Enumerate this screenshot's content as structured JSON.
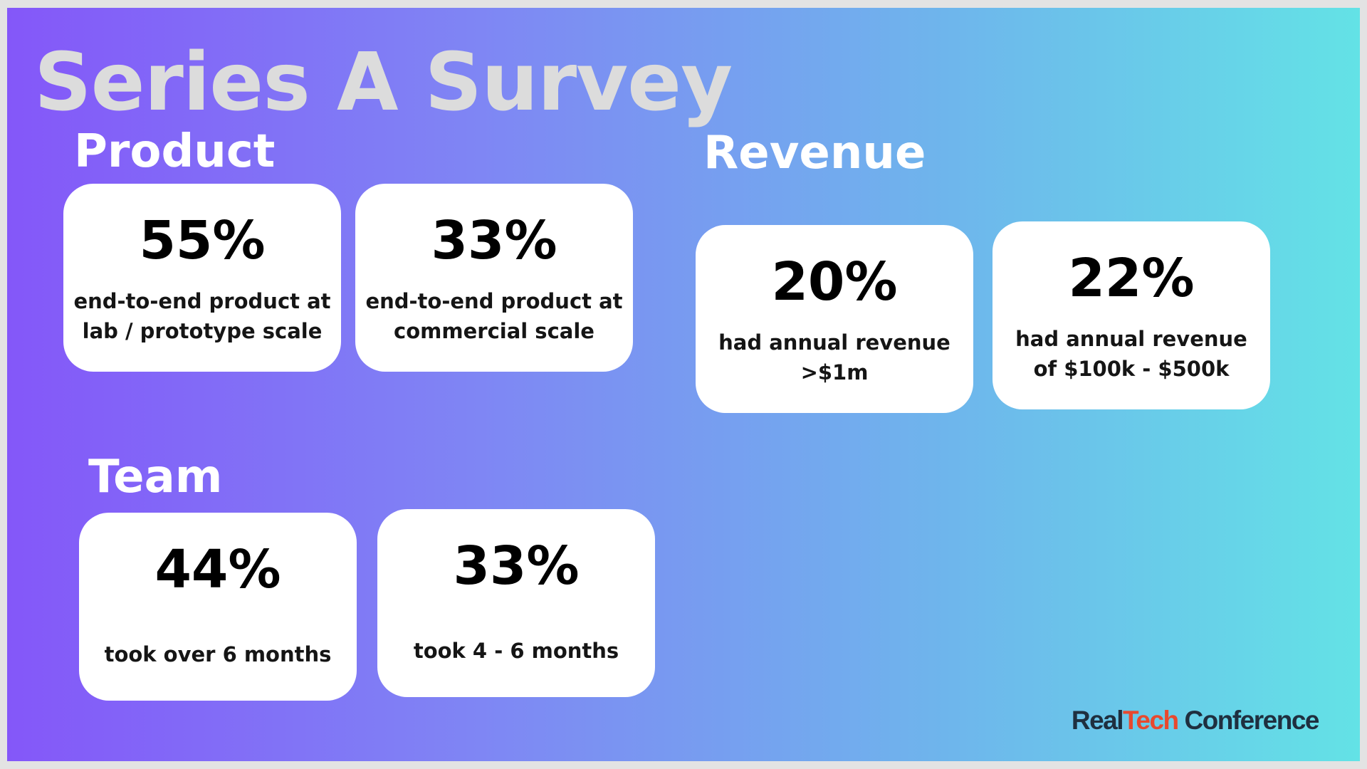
{
  "title": "Series A Survey",
  "sections": {
    "product": {
      "heading": "Product",
      "cards": [
        {
          "stat": "55%",
          "line1": "end-to-end product at",
          "line2": "lab / prototype scale"
        },
        {
          "stat": "33%",
          "line1": "end-to-end product at",
          "line2": "commercial scale"
        }
      ]
    },
    "revenue": {
      "heading": "Revenue",
      "cards": [
        {
          "stat": "20%",
          "line1": "had annual revenue",
          "line2": ">$1m"
        },
        {
          "stat": "22%",
          "line1": "had annual revenue",
          "line2": "of $100k - $500k"
        }
      ]
    },
    "team": {
      "heading": "Team",
      "cards": [
        {
          "stat": "44%",
          "line1": "took over 6 months"
        },
        {
          "stat": "33%",
          "line1": "took 4 - 6 months"
        }
      ]
    }
  },
  "logo": {
    "part1": "Real",
    "part2": "Tech",
    "part3": "Conference"
  },
  "colors": {
    "gradient_start": "#8457f9",
    "gradient_end": "#63e2e6",
    "title": "#dcdcdc",
    "card_bg": "#ffffff",
    "logo_dark": "#1f2f3f",
    "logo_accent": "#e8492e"
  }
}
